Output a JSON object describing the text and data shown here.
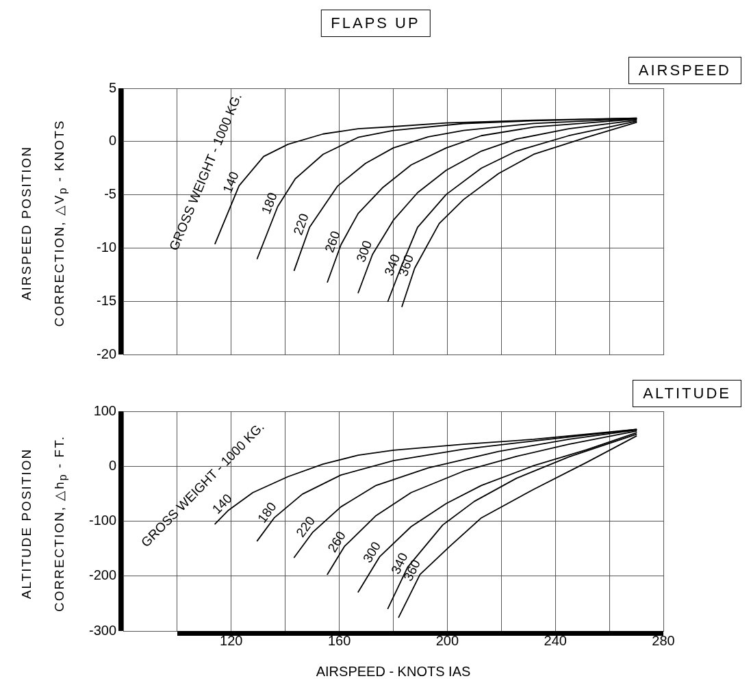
{
  "chart_data": [
    {
      "type": "line",
      "title": "AIRSPEED",
      "ylabel": "AIRSPEED POSITION\nCORRECTION, △V$_{p}$ - KNOTS",
      "annotations": [
        "FLAPS UP",
        "GROSS WEIGHT - 1000 KG."
      ],
      "xlim": [
        80,
        280
      ],
      "xticks": [
        {
          "value": 100,
          "label": null
        },
        {
          "value": 120,
          "label": null
        },
        {
          "value": 140,
          "label": null
        },
        {
          "value": 160,
          "label": null
        },
        {
          "value": 180,
          "label": null
        },
        {
          "value": 200,
          "label": null
        },
        {
          "value": 220,
          "label": null
        },
        {
          "value": 240,
          "label": null
        },
        {
          "value": 260,
          "label": null
        },
        {
          "value": 280,
          "label": null
        }
      ],
      "ylim": [
        -20,
        5
      ],
      "yticks": [
        -20,
        -15,
        -10,
        -5,
        0,
        5
      ],
      "tick_labels": "y",
      "grid": true,
      "legend": false,
      "marker": "none",
      "line_style": "solid",
      "series": [
        {
          "name": "140",
          "color": "#000000",
          "x": [
            114,
            122.9,
            132,
            141,
            154,
            167,
            180,
            199.6,
            232,
            270
          ],
          "values": [
            -9.6,
            -4.15,
            -1.4,
            -0.26,
            0.71,
            1.2,
            1.4,
            1.75,
            2.0,
            2.2
          ]
        },
        {
          "name": "180",
          "color": "#000000",
          "x": [
            129.6,
            137.2,
            143.7,
            154,
            167,
            180,
            206,
            232,
            270
          ],
          "values": [
            -11.0,
            -6.1,
            -3.5,
            -1.2,
            0.39,
            1.04,
            1.69,
            1.95,
            2.2
          ]
        },
        {
          "name": "220",
          "color": "#000000",
          "x": [
            143.3,
            149,
            159.3,
            169.7,
            180,
            193,
            206,
            232,
            270
          ],
          "values": [
            -12.1,
            -8.05,
            -4.2,
            -2.05,
            -0.6,
            0.45,
            1.04,
            1.7,
            2.15
          ]
        },
        {
          "name": "260",
          "color": "#000000",
          "x": [
            155.6,
            160.6,
            167,
            176.2,
            186.6,
            199.6,
            212.6,
            232,
            270
          ],
          "values": [
            -13.2,
            -9.7,
            -6.75,
            -4.3,
            -2.2,
            -0.6,
            0.55,
            1.36,
            2.1
          ]
        },
        {
          "name": "300",
          "color": "#000000",
          "x": [
            167,
            172.3,
            180,
            189,
            199.6,
            212.6,
            225.6,
            245,
            270
          ],
          "values": [
            -14.2,
            -10.6,
            -7.4,
            -4.8,
            -2.7,
            -0.9,
            0.23,
            1.2,
            2.0
          ]
        },
        {
          "name": "340",
          "color": "#000000",
          "x": [
            178,
            182.7,
            189,
            199.6,
            212.6,
            225.6,
            245,
            270
          ],
          "values": [
            -15.0,
            -11.9,
            -8.05,
            -4.97,
            -2.5,
            -0.9,
            0.55,
            1.9
          ]
        },
        {
          "name": "360",
          "color": "#000000",
          "x": [
            183.2,
            187.9,
            197,
            206,
            219,
            232,
            251.6,
            270
          ],
          "values": [
            -15.5,
            -11.9,
            -7.7,
            -5.45,
            -3.0,
            -1.2,
            0.4,
            1.8
          ]
        }
      ]
    },
    {
      "type": "line",
      "title": "ALTITUDE",
      "xlabel": "AIRSPEED - KNOTS IAS",
      "ylabel": "ALTITUDE POSITION\nCORRECTION, △h$_{p}$ - FT.",
      "annotations": [
        "GROSS WEIGHT - 1000 KG."
      ],
      "xlim": [
        80,
        280
      ],
      "xticks": [
        {
          "value": 100,
          "label": null
        },
        120,
        {
          "value": 140,
          "label": null
        },
        160,
        {
          "value": 180,
          "label": null
        },
        200,
        {
          "value": 220,
          "label": null
        },
        240,
        {
          "value": 260,
          "label": null
        },
        280
      ],
      "ylim": [
        -300,
        100
      ],
      "yticks": [
        -300,
        -200,
        -100,
        0,
        100
      ],
      "grid": true,
      "legend": false,
      "marker": "none",
      "line_style": "solid",
      "series": [
        {
          "name": "140",
          "color": "#000000",
          "x": [
            114,
            119,
            128,
            141,
            154,
            167,
            180,
            206,
            232,
            270
          ],
          "values": [
            -105,
            -80,
            -48,
            -19,
            4,
            20,
            29,
            40,
            49,
            67
          ]
        },
        {
          "name": "180",
          "color": "#000000",
          "x": [
            129.6,
            135.9,
            146.3,
            160.6,
            180,
            206,
            232,
            270
          ],
          "values": [
            -136,
            -94,
            -51,
            -16,
            10,
            31,
            46,
            67
          ]
        },
        {
          "name": "220",
          "color": "#000000",
          "x": [
            143.3,
            150.2,
            160.6,
            173.6,
            193,
            219,
            245,
            270
          ],
          "values": [
            -166,
            -120,
            -74,
            -35,
            -3,
            27,
            49,
            66
          ]
        },
        {
          "name": "260",
          "color": "#000000",
          "x": [
            155.6,
            161.9,
            173.6,
            186.6,
            206,
            225.6,
            245,
            270
          ],
          "values": [
            -197,
            -146,
            -90,
            -48,
            -9,
            18,
            40,
            64
          ]
        },
        {
          "name": "300",
          "color": "#000000",
          "x": [
            167,
            174.9,
            186.6,
            199.6,
            212.6,
            232,
            251.6,
            270
          ],
          "values": [
            -229,
            -165,
            -110,
            -68,
            -35,
            1,
            30,
            61
          ]
        },
        {
          "name": "340",
          "color": "#000000",
          "x": [
            178,
            185.3,
            198.3,
            210,
            225.6,
            245,
            270
          ],
          "values": [
            -259,
            -184,
            -107,
            -64,
            -22,
            17,
            58
          ]
        },
        {
          "name": "360",
          "color": "#000000",
          "x": [
            182,
            189.9,
            200.9,
            212.6,
            232,
            251.6,
            270
          ],
          "values": [
            -275,
            -197,
            -146,
            -94,
            -42,
            7,
            55
          ]
        }
      ]
    }
  ]
}
